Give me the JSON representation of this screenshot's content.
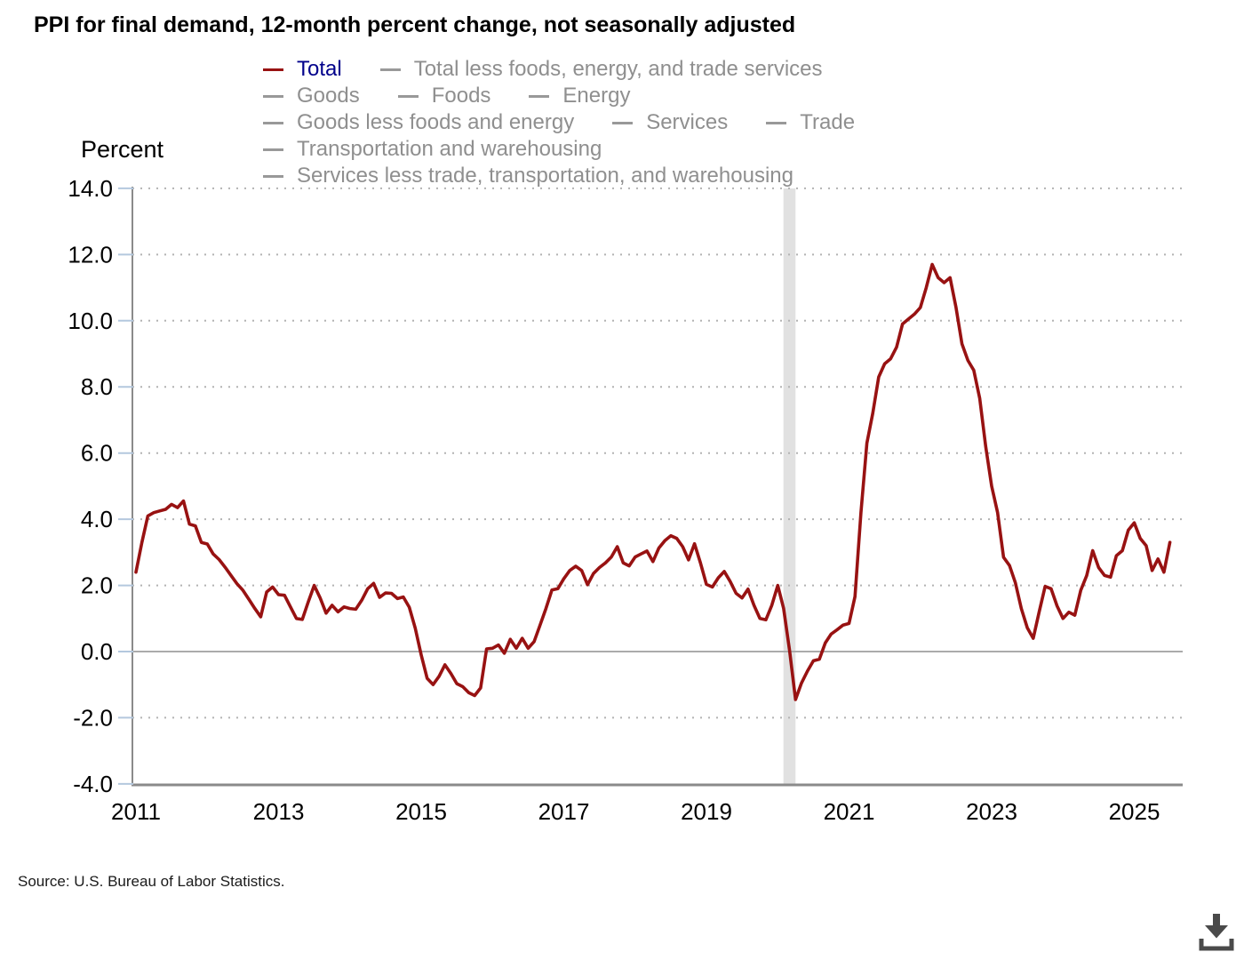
{
  "title": "PPI for final demand, 12-month percent change, not seasonally adjusted",
  "source_note": "Source: U.S. Bureau of Labor Statistics.",
  "colors": {
    "line_total": "#981212",
    "legend_active_text": "#00008b",
    "legend_inactive_text": "#8f8f8f",
    "legend_inactive_swatch": "#999999",
    "gridline": "#b3b3b3",
    "zero_line": "#ababab",
    "axis": "#8a8a8a",
    "y_tick": "#b4c8de",
    "recession_band": "#e1e1e1",
    "download_icon": "#4a4a4a"
  },
  "legend": {
    "rows": [
      [
        {
          "label": "Total",
          "active": true
        },
        {
          "label": "Total less foods, energy, and trade services",
          "active": false
        }
      ],
      [
        {
          "label": "Goods",
          "active": false
        },
        {
          "label": "Foods",
          "active": false
        },
        {
          "label": "Energy",
          "active": false
        }
      ],
      [
        {
          "label": "Goods less foods and energy",
          "active": false
        },
        {
          "label": "Services",
          "active": false
        },
        {
          "label": "Trade",
          "active": false
        }
      ],
      [
        {
          "label": "Transportation and warehousing",
          "active": false
        }
      ],
      [
        {
          "label": "Services less trade, transportation, and warehousing",
          "active": false
        }
      ]
    ]
  },
  "chart_data": {
    "type": "line",
    "title": "PPI for final demand, 12-month percent change, not seasonally adjusted",
    "ylabel": "Percent",
    "xlabel": "",
    "ylim": [
      -4.0,
      14.0
    ],
    "y_tick_step": 2,
    "y_tick_labels": [
      "14.0",
      "12.0",
      "10.0",
      "8.0",
      "6.0",
      "4.0",
      "2.0",
      "0.0",
      "-2.0",
      "-4.0"
    ],
    "x_tick_labels": [
      "2011",
      "2013",
      "2015",
      "2017",
      "2019",
      "2021",
      "2023",
      "2025"
    ],
    "grid": "dotted-horizontal",
    "legend_position": "top",
    "frequency": "monthly",
    "x_start_year": 2011,
    "x_start_month": "January",
    "x_end_month": "July 2025",
    "recession_band_years": [
      2020.08,
      2020.25
    ],
    "series": [
      {
        "name": "Total",
        "color": "#981212",
        "values": [
          2.4,
          3.3,
          4.1,
          4.2,
          4.25,
          4.3,
          4.45,
          4.35,
          4.55,
          3.85,
          3.8,
          3.3,
          3.25,
          2.95,
          2.78,
          2.55,
          2.3,
          2.05,
          1.85,
          1.58,
          1.3,
          1.05,
          1.8,
          1.95,
          1.72,
          1.7,
          1.35,
          1.0,
          0.97,
          1.5,
          2.0,
          1.62,
          1.16,
          1.4,
          1.2,
          1.35,
          1.3,
          1.28,
          1.55,
          1.9,
          2.06,
          1.64,
          1.77,
          1.76,
          1.6,
          1.65,
          1.34,
          0.71,
          -0.1,
          -0.81,
          -1.0,
          -0.75,
          -0.4,
          -0.66,
          -0.97,
          -1.06,
          -1.24,
          -1.33,
          -1.1,
          0.08,
          0.1,
          0.2,
          -0.05,
          0.37,
          0.1,
          0.4,
          0.1,
          0.3,
          0.8,
          1.3,
          1.86,
          1.9,
          2.2,
          2.45,
          2.58,
          2.45,
          2.02,
          2.36,
          2.54,
          2.68,
          2.86,
          3.17,
          2.68,
          2.59,
          2.86,
          2.95,
          3.04,
          2.72,
          3.13,
          3.35,
          3.5,
          3.42,
          3.17,
          2.77,
          3.26,
          2.68,
          2.03,
          1.95,
          2.23,
          2.42,
          2.12,
          1.76,
          1.62,
          1.89,
          1.4,
          1.0,
          0.96,
          1.4,
          2.0,
          1.3,
          0.03,
          -1.45,
          -0.95,
          -0.59,
          -0.28,
          -0.23,
          0.26,
          0.53,
          0.66,
          0.8,
          0.85,
          1.66,
          4.2,
          6.3,
          7.2,
          8.3,
          8.7,
          8.85,
          9.2,
          9.9,
          10.05,
          10.2,
          10.4,
          11.0,
          11.7,
          11.3,
          11.15,
          11.3,
          10.4,
          9.3,
          8.8,
          8.5,
          7.65,
          6.2,
          5.0,
          4.2,
          2.85,
          2.6,
          2.08,
          1.3,
          0.72,
          0.4,
          1.2,
          1.97,
          1.9,
          1.38,
          1.0,
          1.19,
          1.1,
          1.85,
          2.3,
          3.05,
          2.54,
          2.3,
          2.25,
          2.9,
          3.05,
          3.67,
          3.89,
          3.42,
          3.2,
          2.45,
          2.8,
          2.4,
          3.3
        ]
      }
    ]
  }
}
